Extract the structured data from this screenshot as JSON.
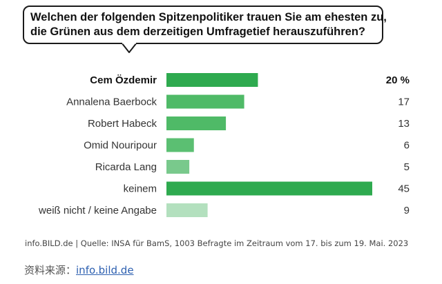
{
  "question": {
    "line1": "Welchen der folgenden Spitzenpolitiker trauen Sie am ehesten zu,",
    "line2": "die Grünen aus dem derzeitigen Umfragetief herauszuführen?"
  },
  "chart_data": {
    "type": "bar",
    "orientation": "horizontal",
    "categories": [
      "Cem Özdemir",
      "Annalena Baerbock",
      "Robert Habeck",
      "Omid Nouripour",
      "Ricarda Lang",
      "keinem",
      "weiß nicht / keine Angabe"
    ],
    "values": [
      20,
      17,
      13,
      6,
      5,
      45,
      9
    ],
    "value_labels": [
      "20 %",
      "17",
      "13",
      "6",
      "5",
      "45",
      "9"
    ],
    "highlighted_category": "Cem Özdemir",
    "colors": [
      "#2eaa4f",
      "#4fba67",
      "#4fba67",
      "#5bbf72",
      "#79c98c",
      "#2eaa4f",
      "#b3e0be"
    ],
    "xlim": [
      0,
      45
    ],
    "grid": false,
    "legend": "none"
  },
  "footer": {
    "source": "info.BILD.de | Quelle: INSA für BamS, 1003 Befragte im Zeitraum vom 17. bis zum 19. Mai. 2023"
  },
  "caption": {
    "prefix": "资料来源：",
    "link": "info.bild.de"
  }
}
